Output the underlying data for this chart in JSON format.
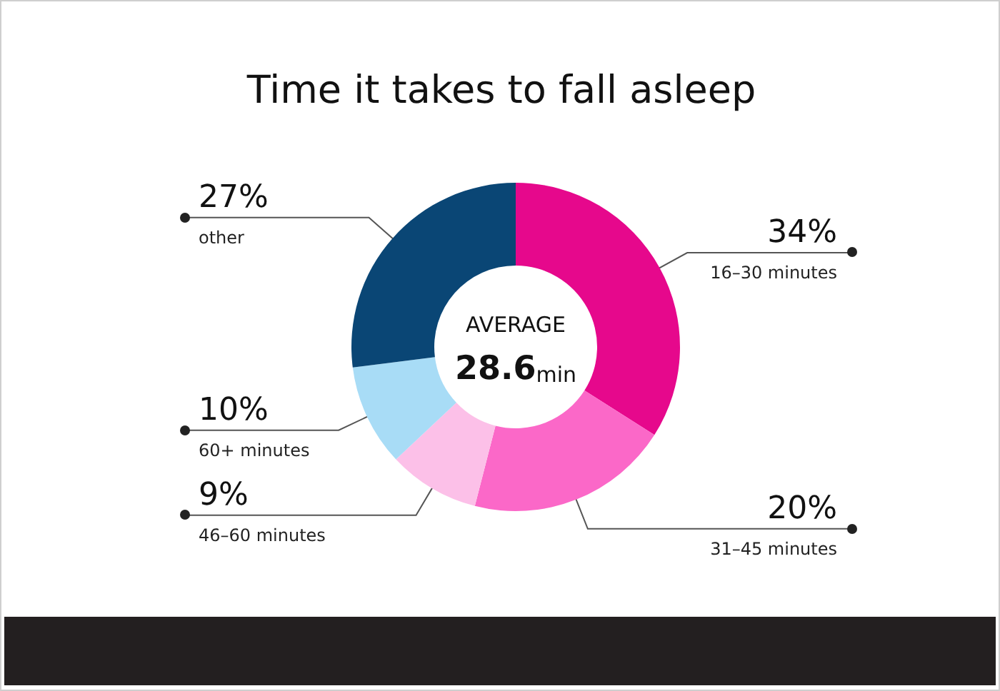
{
  "chart_data": {
    "type": "donut",
    "title": "Time it takes to fall asleep",
    "categories": [
      "16–30 minutes",
      "31–45 minutes",
      "46–60 minutes",
      "60+ minutes",
      "other"
    ],
    "values": [
      34,
      20,
      9,
      10,
      27
    ],
    "colors": [
      "#e6088c",
      "#fb68c8",
      "#fcc0e8",
      "#a8dcf6",
      "#0a4675"
    ],
    "value_labels": [
      "34%",
      "20%",
      "9%",
      "10%",
      "27%"
    ],
    "annotations": [
      "AVERAGE",
      "28.6min"
    ]
  }
}
